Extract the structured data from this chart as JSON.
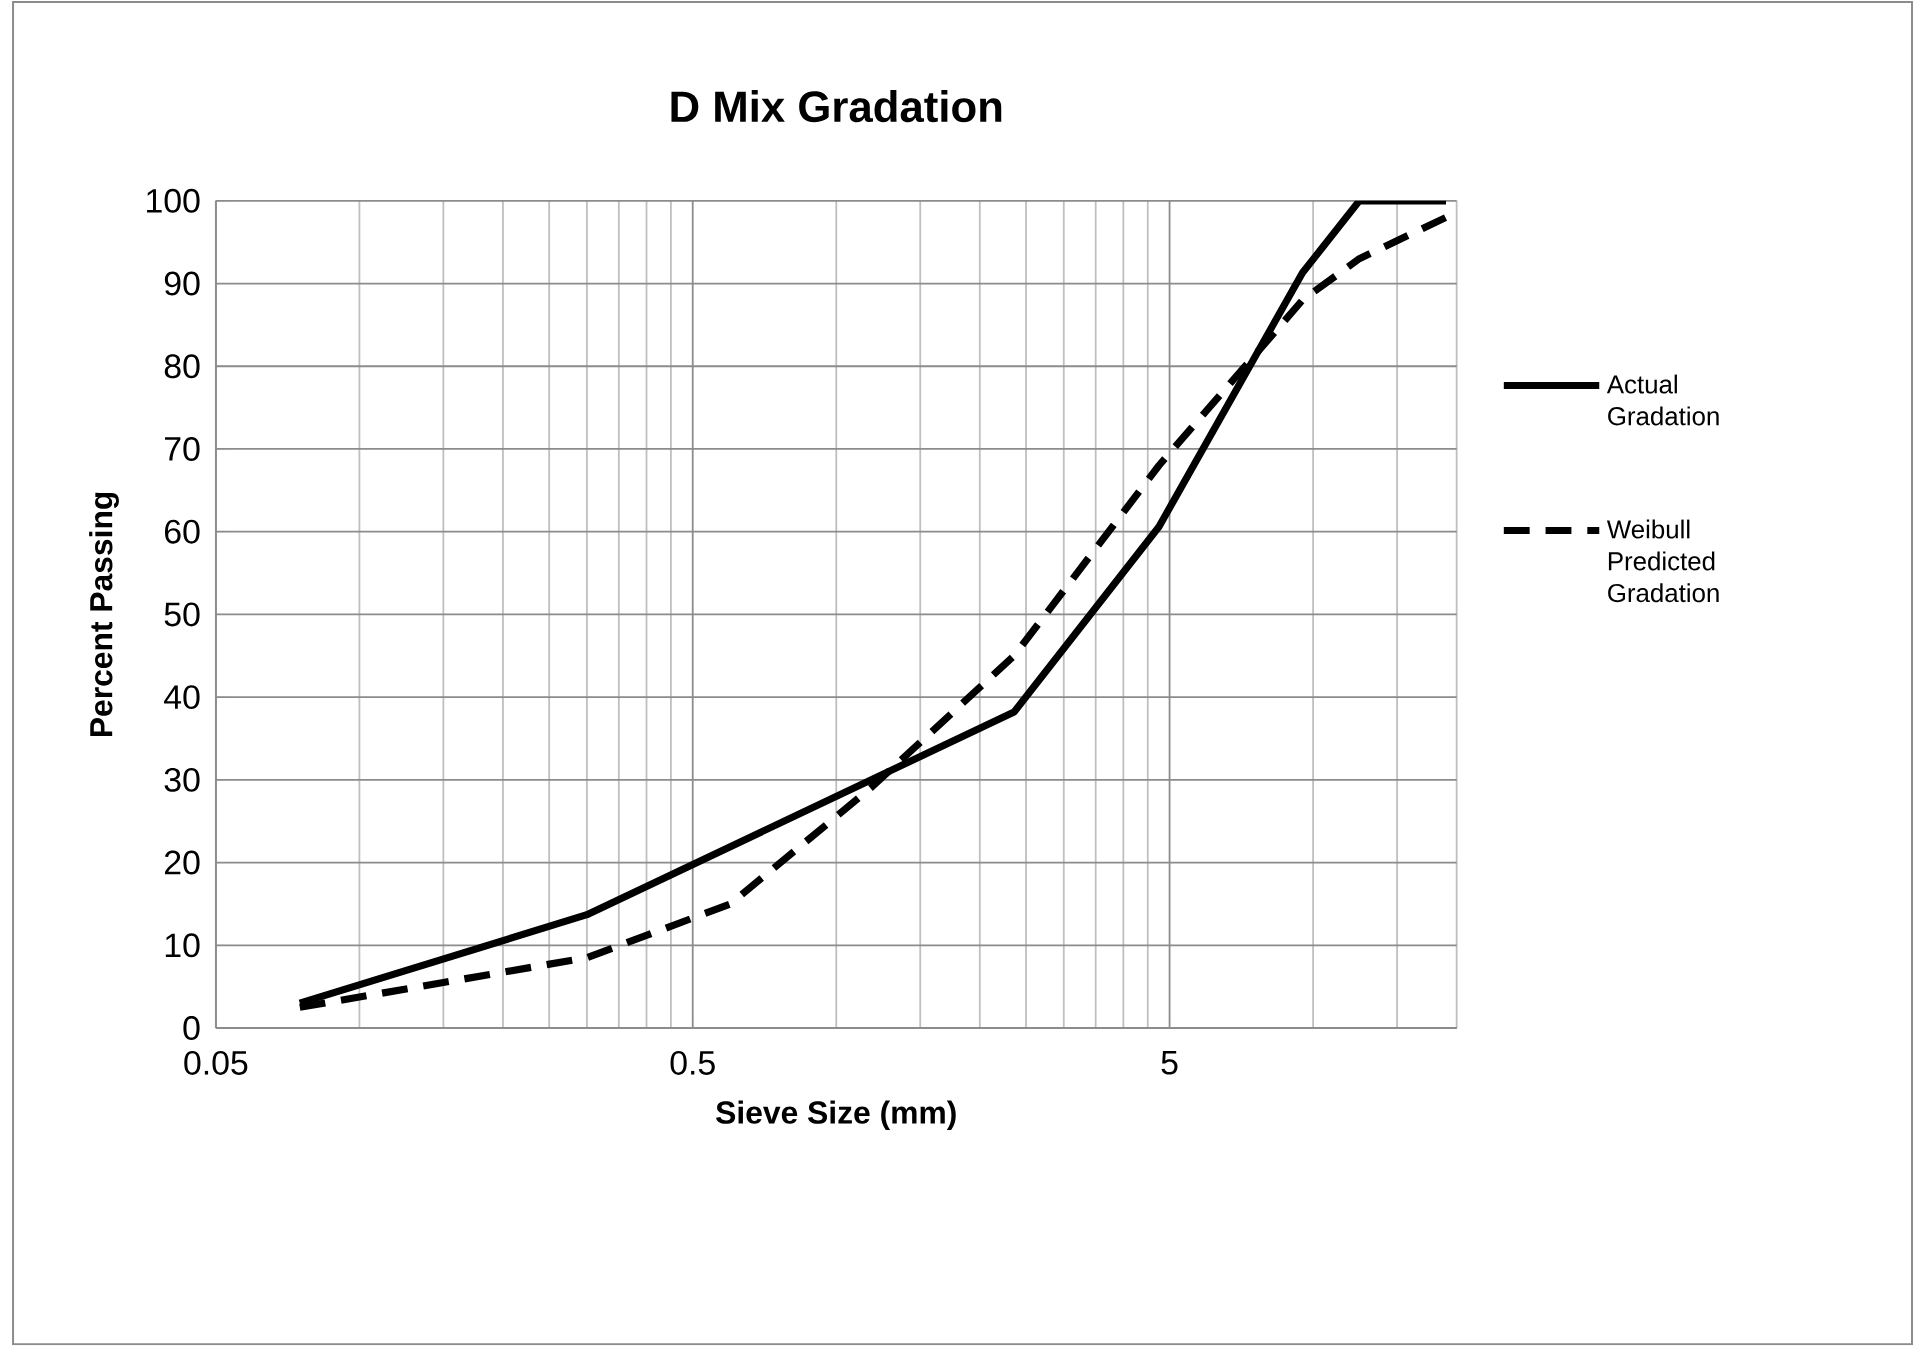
{
  "chart_data": {
    "type": "line",
    "title": "D Mix Gradation",
    "xlabel": "Sieve Size (mm)",
    "ylabel": "Percent Passing",
    "log": "x",
    "xlim": [
      0.05,
      20
    ],
    "xticks": [
      0.05,
      0.5,
      5
    ],
    "ylim": [
      0,
      100
    ],
    "yticks": [
      0,
      10,
      20,
      30,
      40,
      50,
      60,
      70,
      80,
      90,
      100
    ],
    "grid": true,
    "legend": "right",
    "marker": "none",
    "series": [
      {
        "name": "Actual Gradation",
        "color": "#000000",
        "line_style": "solid",
        "x": [
          0.075,
          0.3,
          2.36,
          4.75,
          9.5,
          12.5,
          19
        ],
        "values": [
          3,
          13.7,
          38.2,
          60.6,
          91.3,
          100,
          100
        ]
      },
      {
        "name": "Weibull Predicted Gradation",
        "color": "#000000",
        "line_style": "dashed",
        "x": [
          0.075,
          0.15,
          0.3,
          0.6,
          1.18,
          2.36,
          4.75,
          9.5,
          12.5,
          19
        ],
        "values": [
          2.5,
          5.5,
          8.5,
          15,
          29,
          45,
          68,
          88,
          93,
          98
        ]
      }
    ]
  }
}
